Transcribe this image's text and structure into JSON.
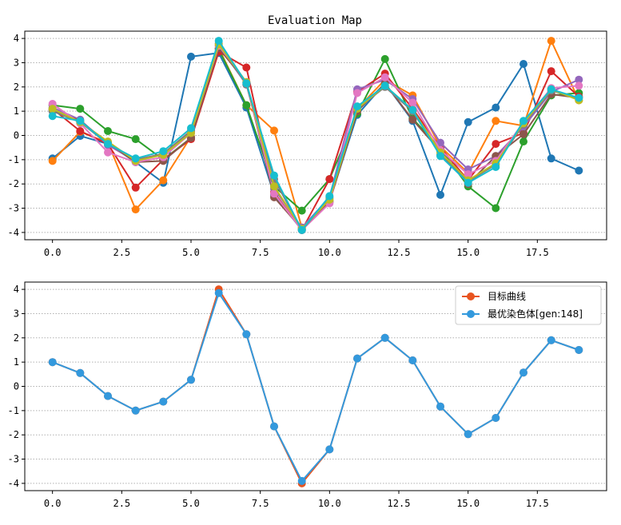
{
  "chart_data": [
    {
      "type": "line",
      "title": "Evaluation Map",
      "xlabel": "",
      "ylabel": "",
      "xlim": [
        -1,
        20
      ],
      "ylim": [
        -4.3,
        4.3
      ],
      "xticks": [
        0.0,
        2.5,
        5.0,
        7.5,
        10.0,
        12.5,
        15.0,
        17.5
      ],
      "xtick_labels": [
        "0.0",
        "2.5",
        "5.0",
        "7.5",
        "10.0",
        "12.5",
        "15.0",
        "17.5"
      ],
      "yticks": [
        -4,
        -3,
        -2,
        -1,
        0,
        1,
        2,
        3,
        4
      ],
      "ytick_labels": [
        "-4",
        "-3",
        "-2",
        "-1",
        "0",
        "1",
        "2",
        "3",
        "4"
      ],
      "grid": "y-dotted",
      "x": [
        0,
        1,
        2,
        3,
        4,
        5,
        6,
        7,
        8,
        9,
        10,
        11,
        12,
        13,
        14,
        15,
        16,
        17,
        18,
        19
      ],
      "series": [
        {
          "color": "#1f77b4",
          "values": [
            -0.95,
            -0.02,
            -0.35,
            -1.1,
            -1.95,
            3.25,
            3.4,
            1.15,
            -2.45,
            -3.9,
            -2.7,
            0.85,
            2.15,
            0.6,
            -2.45,
            0.55,
            1.15,
            2.95,
            -0.95,
            -1.45
          ]
        },
        {
          "color": "#ff7f0e",
          "values": [
            -1.05,
            0.15,
            -0.3,
            -3.05,
            -1.85,
            -0.05,
            3.6,
            1.25,
            0.2,
            -3.8,
            -2.7,
            1.1,
            2.3,
            1.65,
            -0.45,
            -1.55,
            0.6,
            0.4,
            3.9,
            1.45
          ]
        },
        {
          "color": "#2ca02c",
          "values": [
            1.25,
            1.1,
            0.18,
            -0.15,
            -1.0,
            -0.1,
            3.55,
            1.25,
            -2.1,
            -3.1,
            -1.8,
            0.9,
            3.15,
            0.7,
            -0.55,
            -2.1,
            -3.0,
            -0.25,
            1.65,
            1.75
          ]
        },
        {
          "color": "#d62728",
          "values": [
            1.1,
            0.18,
            -0.35,
            -2.15,
            -1.0,
            -0.15,
            3.45,
            2.8,
            -2.35,
            -3.9,
            -1.8,
            1.8,
            2.55,
            1.1,
            -0.5,
            -1.85,
            -0.35,
            0.1,
            2.65,
            1.6
          ]
        },
        {
          "color": "#9467bd",
          "values": [
            1.15,
            0.65,
            -0.4,
            -1.05,
            -0.75,
            0.15,
            3.7,
            2.1,
            -2.2,
            -3.8,
            -2.55,
            1.9,
            2.3,
            1.5,
            -0.3,
            -1.4,
            -0.85,
            0.35,
            1.8,
            2.3
          ]
        },
        {
          "color": "#8c564b",
          "values": [
            1.05,
            0.6,
            -0.3,
            -1.1,
            -1.05,
            -0.1,
            3.6,
            2.2,
            -2.55,
            -3.85,
            -2.75,
            1.0,
            2.15,
            0.65,
            -0.65,
            -2.0,
            -0.85,
            0.05,
            1.7,
            1.55
          ]
        },
        {
          "color": "#e377c2",
          "values": [
            1.3,
            0.5,
            -0.7,
            -1.1,
            -0.9,
            0.1,
            3.7,
            2.2,
            -2.4,
            -3.9,
            -2.8,
            1.75,
            2.4,
            1.35,
            -0.6,
            -1.6,
            -1.05,
            0.55,
            1.95,
            2.05
          ]
        },
        {
          "color": "#7f7f7f",
          "values": [
            1.0,
            0.55,
            -0.35,
            -1.0,
            -0.75,
            0.2,
            3.8,
            2.1,
            -1.8,
            -3.9,
            -2.6,
            1.1,
            2.0,
            1.0,
            -0.8,
            -1.9,
            -1.2,
            0.45,
            1.85,
            1.55
          ]
        },
        {
          "color": "#bcbd22",
          "values": [
            1.1,
            0.55,
            -0.25,
            -1.05,
            -0.8,
            0.1,
            3.75,
            2.2,
            -2.1,
            -3.85,
            -2.65,
            1.1,
            2.05,
            1.05,
            -0.7,
            -1.85,
            -1.15,
            0.5,
            1.9,
            1.45
          ]
        },
        {
          "color": "#17becf",
          "values": [
            0.8,
            0.6,
            -0.35,
            -0.95,
            -0.65,
            0.3,
            3.9,
            2.15,
            -1.65,
            -3.9,
            -2.5,
            1.2,
            2.05,
            1.05,
            -0.85,
            -1.95,
            -1.3,
            0.6,
            1.9,
            1.55
          ]
        }
      ]
    },
    {
      "type": "line",
      "title": "",
      "xlabel": "",
      "ylabel": "",
      "xlim": [
        -1,
        20
      ],
      "ylim": [
        -4.3,
        4.3
      ],
      "xticks": [
        0.0,
        2.5,
        5.0,
        7.5,
        10.0,
        12.5,
        15.0,
        17.5
      ],
      "xtick_labels": [
        "0.0",
        "2.5",
        "5.0",
        "7.5",
        "10.0",
        "12.5",
        "15.0",
        "17.5"
      ],
      "yticks": [
        -4,
        -3,
        -2,
        -1,
        0,
        1,
        2,
        3,
        4
      ],
      "ytick_labels": [
        "-4",
        "-3",
        "-2",
        "-1",
        "0",
        "1",
        "2",
        "3",
        "4"
      ],
      "grid": "y-dotted",
      "legend_position": "top-right",
      "x": [
        0,
        1,
        2,
        3,
        4,
        5,
        6,
        7,
        8,
        9,
        10,
        11,
        12,
        13,
        14,
        15,
        16,
        17,
        18,
        19
      ],
      "series": [
        {
          "name": "目标曲线",
          "color": "#e8541f",
          "values": [
            1.0,
            0.55,
            -0.4,
            -1.0,
            -0.63,
            0.27,
            4.0,
            2.15,
            -1.65,
            -4.0,
            -2.6,
            1.15,
            2.0,
            1.07,
            -0.83,
            -1.97,
            -1.3,
            0.57,
            1.9,
            1.5
          ]
        },
        {
          "name": "最优染色体[gen:148]",
          "color": "#3399dd",
          "values": [
            1.0,
            0.55,
            -0.4,
            -1.0,
            -0.63,
            0.27,
            3.85,
            2.15,
            -1.65,
            -3.9,
            -2.6,
            1.15,
            2.0,
            1.07,
            -0.83,
            -1.97,
            -1.3,
            0.57,
            1.9,
            1.5
          ]
        }
      ]
    }
  ]
}
